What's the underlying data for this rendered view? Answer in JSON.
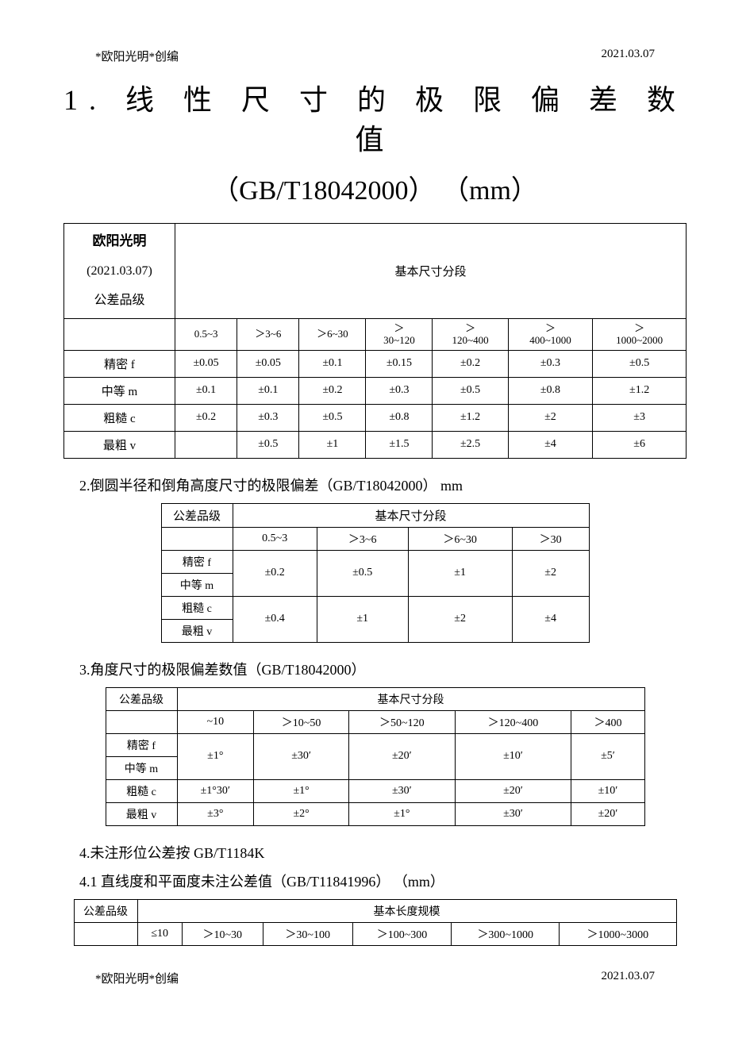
{
  "header": {
    "left": "*欧阳光明*创编",
    "right": "2021.03.07"
  },
  "title_main": "1. 线 性 尺 寸 的 极 限 偏 差 数 值",
  "title_sub": "（GB/T18042000） （mm）",
  "table1": {
    "corner_line1": "欧阳光明",
    "corner_line2": "(2021.03.07)",
    "corner_line3": "公差品级",
    "span_header": "基本尺寸分段",
    "ranges": [
      "0.5~3",
      "＞3~6",
      "＞6~30",
      "＞\n30~120",
      "＞\n120~400",
      "＞\n400~1000",
      "＞\n1000~2000"
    ],
    "rows": [
      {
        "label": "精密 f",
        "vals": [
          "±0.05",
          "±0.05",
          "±0.1",
          "±0.15",
          "±0.2",
          "±0.3",
          "±0.5"
        ]
      },
      {
        "label": "中等 m",
        "vals": [
          "±0.1",
          "±0.1",
          "±0.2",
          "±0.3",
          "±0.5",
          "±0.8",
          "±1.2"
        ]
      },
      {
        "label": "粗糙 c",
        "vals": [
          "±0.2",
          "±0.3",
          "±0.5",
          "±0.8",
          "±1.2",
          "±2",
          "±3"
        ]
      },
      {
        "label": "最粗 v",
        "vals": [
          "",
          "±0.5",
          "±1",
          "±1.5",
          "±2.5",
          "±4",
          "±6"
        ]
      }
    ]
  },
  "section2_title": "2.倒圆半径和倒角高度尺寸的极限偏差（GB/T18042000）  mm",
  "table2": {
    "corner": "公差品级",
    "span_header": "基本尺寸分段",
    "ranges": [
      "0.5~3",
      "＞3~6",
      "＞6~30",
      "＞30"
    ],
    "rows": [
      {
        "labels": [
          "精密 f",
          "中等 m"
        ],
        "vals": [
          "±0.2",
          "±0.5",
          "±1",
          "±2"
        ]
      },
      {
        "labels": [
          "粗糙 c",
          "最粗 v"
        ],
        "vals": [
          "±0.4",
          "±1",
          "±2",
          "±4"
        ]
      }
    ]
  },
  "section3_title": "3.角度尺寸的极限偏差数值（GB/T18042000）",
  "table3": {
    "corner": "公差品级",
    "span_header": "基本尺寸分段",
    "ranges": [
      "~10",
      "＞10~50",
      "＞50~120",
      "＞120~400",
      "＞400"
    ],
    "rows": [
      {
        "labels": [
          "精密 f",
          "中等 m"
        ],
        "vals": [
          "±1°",
          "±30′",
          "±20′",
          "±10′",
          "±5′"
        ],
        "merged": true
      },
      {
        "labels": [
          "粗糙 c"
        ],
        "vals": [
          "±1°30′",
          "±1°",
          "±30′",
          "±20′",
          "±10′"
        ],
        "merged": false
      },
      {
        "labels": [
          "最粗 v"
        ],
        "vals": [
          "±3°",
          "±2°",
          "±1°",
          "±30′",
          "±20′"
        ],
        "merged": false
      }
    ]
  },
  "section4_title": "4.未注形位公差按 GB/T1184K",
  "section41_title": "4.1 直线度和平面度未注公差值（GB/T11841996） （mm）",
  "table4": {
    "corner": "公差品级",
    "span_header": "基本长度规模",
    "ranges": [
      "≤10",
      "＞10~30",
      "＞30~100",
      "＞100~300",
      "＞300~1000",
      "＞1000~3000"
    ]
  },
  "footer": {
    "left": "*欧阳光明*创编",
    "right": "2021.03.07"
  }
}
